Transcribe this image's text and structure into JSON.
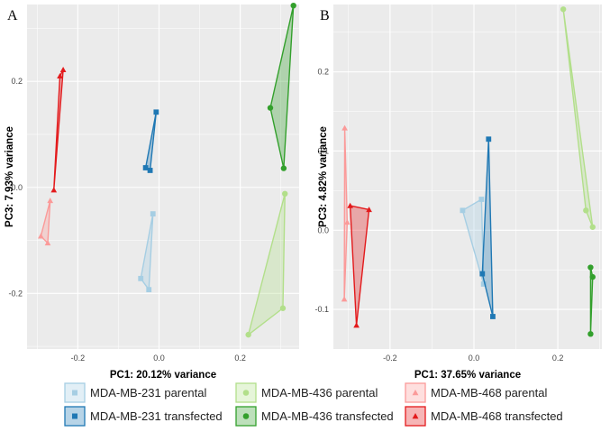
{
  "colors": {
    "mda231_parental": "#a6cee3",
    "mda231_transfected": "#1f78b4",
    "mda436_parental": "#b2df8a",
    "mda436_transfected": "#33a02c",
    "mda468_parental": "#fb9a99",
    "mda468_transfected": "#e31a1c",
    "panel_bg": "#ebebeb",
    "grid": "#ffffff"
  },
  "legend": [
    {
      "key": "mda231_parental",
      "label": "MDA-MB-231 parental",
      "shape": "square"
    },
    {
      "key": "mda436_parental",
      "label": "MDA-MB-436 parental",
      "shape": "circle"
    },
    {
      "key": "mda468_parental",
      "label": "MDA-MB-468 parental",
      "shape": "triangle"
    },
    {
      "key": "mda231_transfected",
      "label": "MDA-MB-231 transfected",
      "shape": "square"
    },
    {
      "key": "mda436_transfected",
      "label": "MDA-MB-436 transfected",
      "shape": "circle"
    },
    {
      "key": "mda468_transfected",
      "label": "MDA-MB-468 transfected",
      "shape": "triangle"
    }
  ],
  "chart_data": [
    {
      "type": "scatter",
      "panel": "A",
      "xlabel": "PC1: 20.12% variance",
      "ylabel": "PC3: 7.93% variance",
      "xlim": [
        -0.325,
        0.345
      ],
      "ylim": [
        -0.305,
        0.345
      ],
      "xticks": [
        -0.2,
        0.0,
        0.2
      ],
      "xticklabels": [
        "-0.2",
        "0.0",
        "0.2"
      ],
      "yticks": [
        -0.2,
        0.0,
        0.2
      ],
      "yticklabels": [
        "-0.2",
        "0.0",
        "0.2"
      ],
      "series": [
        {
          "key": "mda231_parental",
          "shape": "square",
          "points": [
            [
              -0.015,
              -0.05
            ],
            [
              -0.045,
              -0.172
            ],
            [
              -0.025,
              -0.193
            ]
          ]
        },
        {
          "key": "mda231_transfected",
          "shape": "square",
          "points": [
            [
              -0.007,
              0.142
            ],
            [
              -0.033,
              0.037
            ],
            [
              -0.022,
              0.032
            ]
          ]
        },
        {
          "key": "mda436_parental",
          "shape": "circle",
          "points": [
            [
              0.31,
              -0.012
            ],
            [
              0.305,
              -0.228
            ],
            [
              0.22,
              -0.278
            ]
          ]
        },
        {
          "key": "mda436_transfected",
          "shape": "circle",
          "points": [
            [
              0.331,
              0.343
            ],
            [
              0.274,
              0.15
            ],
            [
              0.307,
              0.036
            ]
          ]
        },
        {
          "key": "mda468_parental",
          "shape": "triangle",
          "points": [
            [
              -0.268,
              -0.025
            ],
            [
              -0.291,
              -0.092
            ],
            [
              -0.274,
              -0.105
            ]
          ]
        },
        {
          "key": "mda468_transfected",
          "shape": "triangle",
          "points": [
            [
              -0.236,
              0.222
            ],
            [
              -0.244,
              0.21
            ],
            [
              -0.259,
              -0.005
            ]
          ]
        }
      ]
    },
    {
      "type": "scatter",
      "panel": "B",
      "xlabel": "PC1: 37.65% variance",
      "ylabel": "PC3: 4.82% variance",
      "xlim": [
        -0.335,
        0.305
      ],
      "ylim": [
        -0.15,
        0.285
      ],
      "xticks": [
        -0.2,
        0.0,
        0.2
      ],
      "xticklabels": [
        "-0.2",
        "0.0",
        "0.2"
      ],
      "yticks": [
        -0.1,
        0.0,
        0.1,
        0.2
      ],
      "yticklabels": [
        "-0.1",
        "0.0",
        "0.1",
        "0.2"
      ],
      "series": [
        {
          "key": "mda231_parental",
          "shape": "square",
          "points": [
            [
              -0.027,
              0.025
            ],
            [
              0.018,
              0.039
            ],
            [
              0.023,
              -0.068
            ]
          ]
        },
        {
          "key": "mda231_transfected",
          "shape": "square",
          "points": [
            [
              0.035,
              0.115
            ],
            [
              0.02,
              -0.055
            ],
            [
              0.045,
              -0.109
            ]
          ]
        },
        {
          "key": "mda436_parental",
          "shape": "circle",
          "points": [
            [
              0.213,
              0.279
            ],
            [
              0.267,
              0.025
            ],
            [
              0.283,
              0.004
            ]
          ]
        },
        {
          "key": "mda436_transfected",
          "shape": "circle",
          "points": [
            [
              0.278,
              -0.047
            ],
            [
              0.283,
              -0.059
            ],
            [
              0.278,
              -0.131
            ]
          ]
        },
        {
          "key": "mda468_parental",
          "shape": "triangle",
          "points": [
            [
              -0.308,
              0.129
            ],
            [
              -0.302,
              0.01
            ],
            [
              -0.309,
              -0.087
            ]
          ]
        },
        {
          "key": "mda468_transfected",
          "shape": "triangle",
          "points": [
            [
              -0.295,
              0.031
            ],
            [
              -0.25,
              0.026
            ],
            [
              -0.28,
              -0.12
            ]
          ]
        }
      ]
    }
  ]
}
